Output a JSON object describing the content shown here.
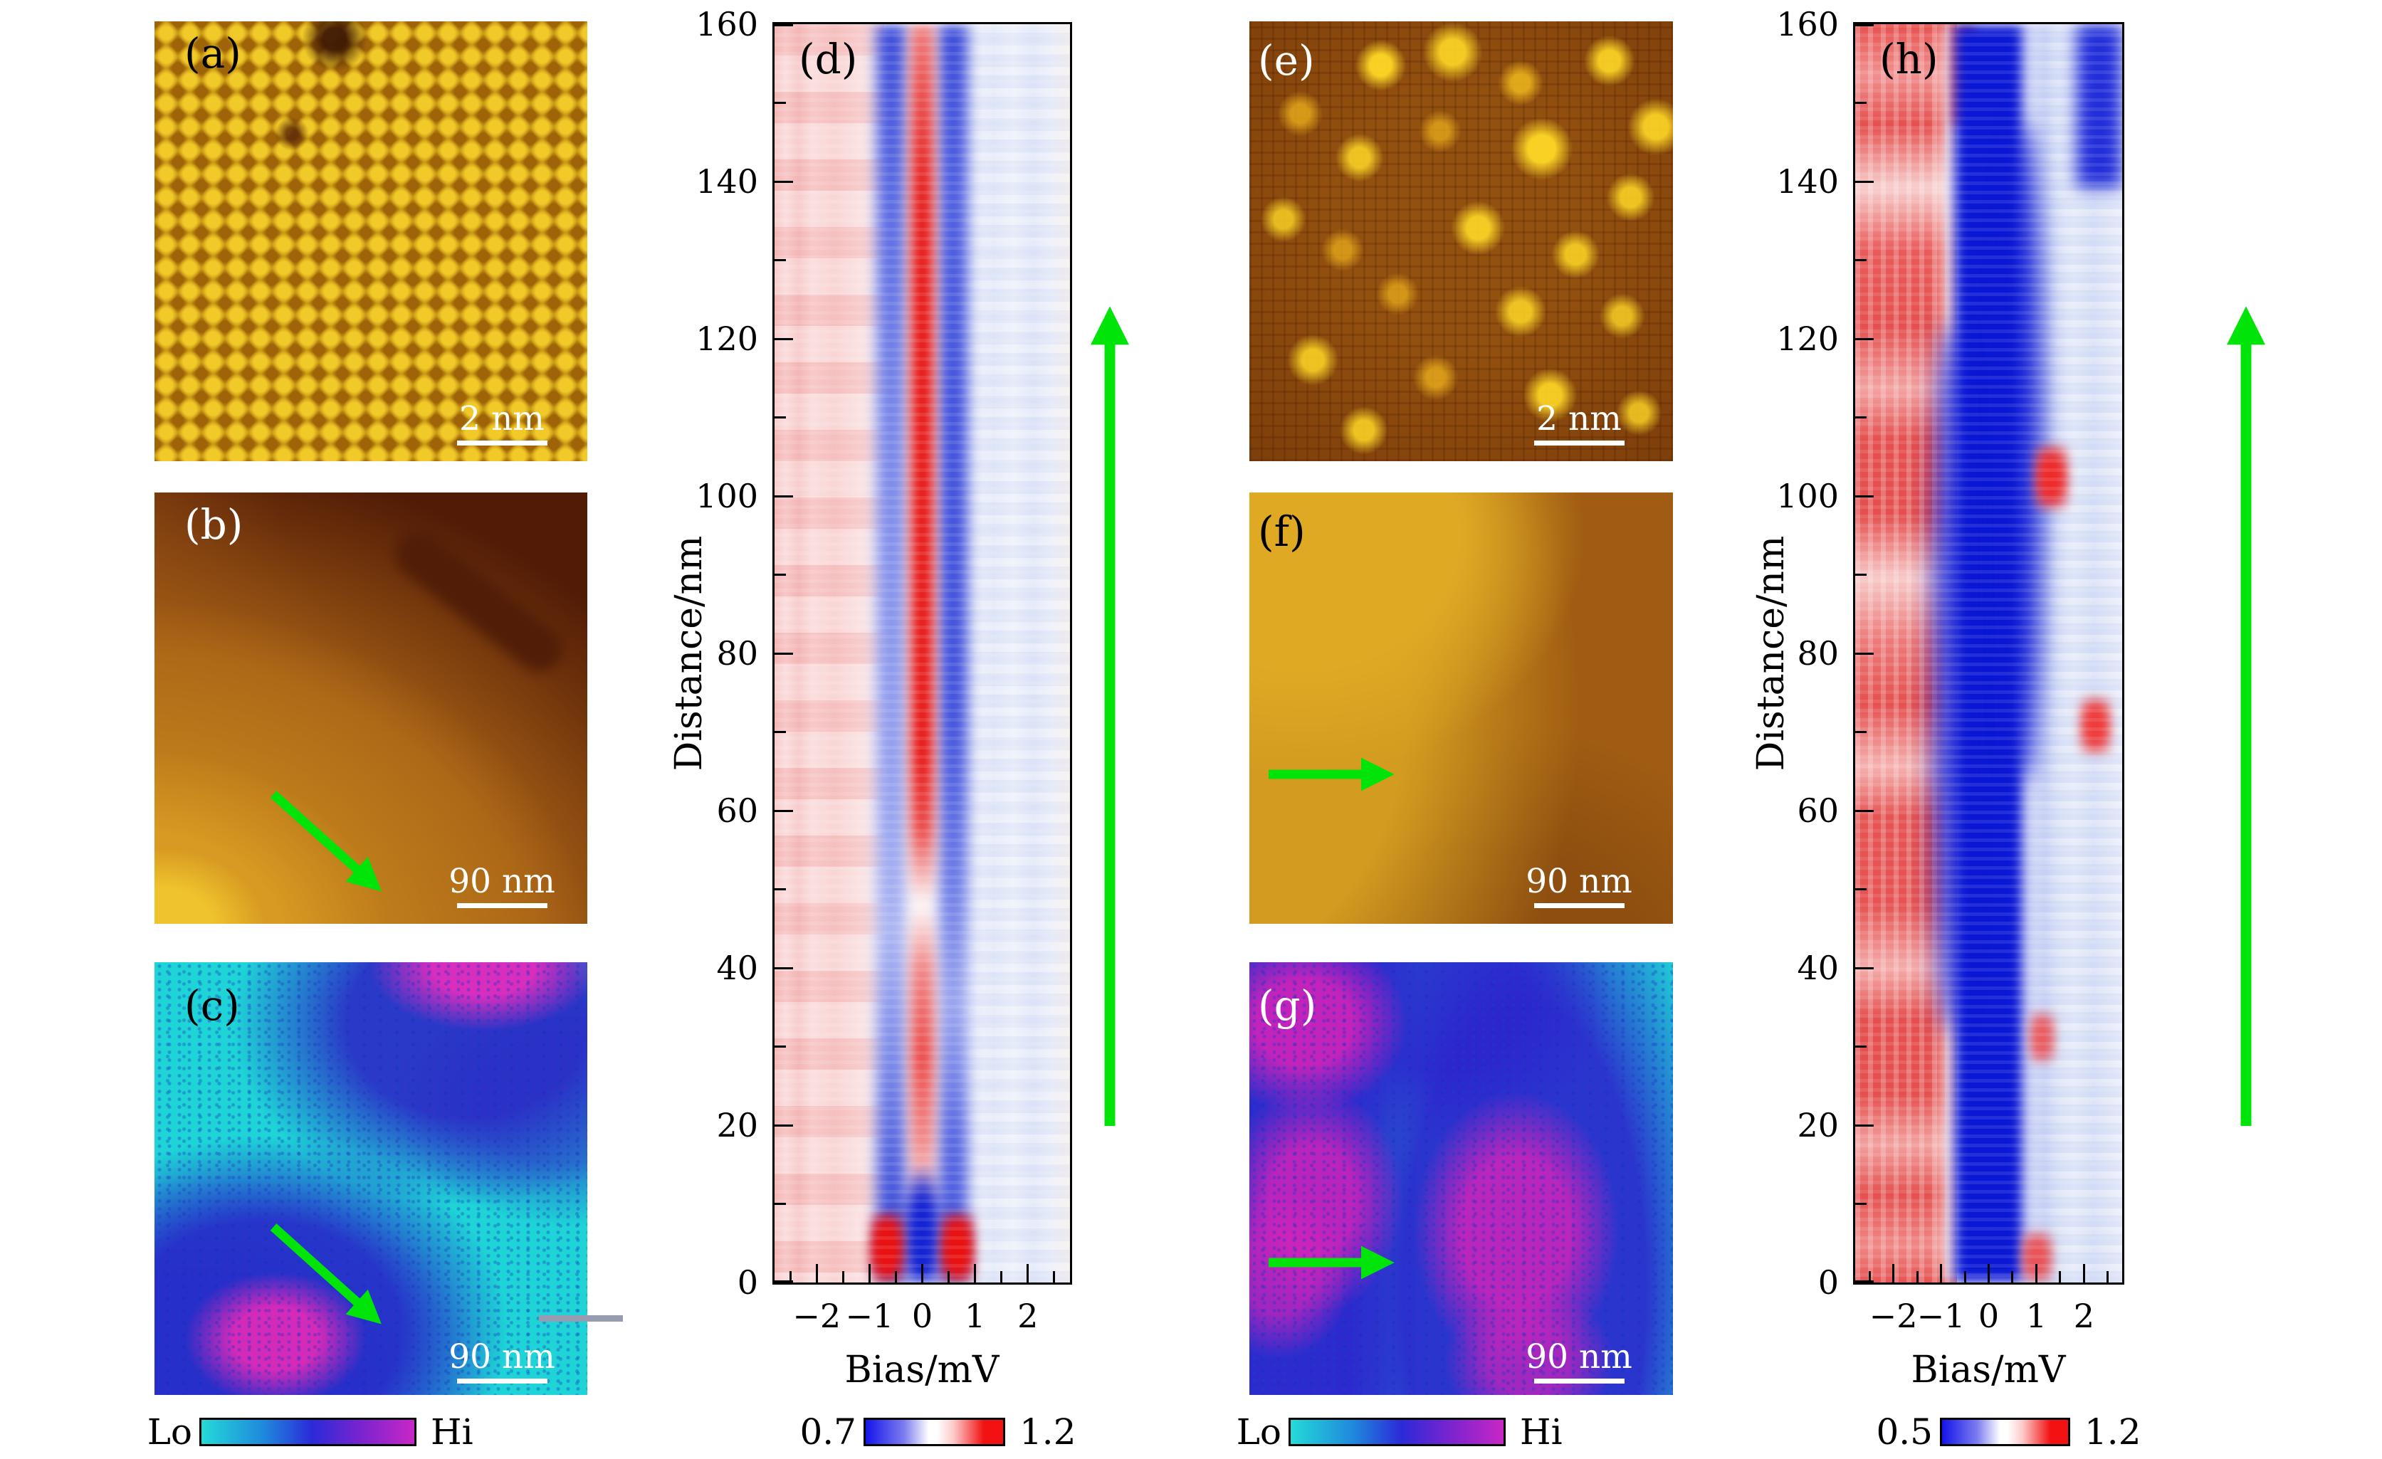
{
  "figure": {
    "panels": {
      "a": {
        "label": "(a)",
        "scalebar": "2 nm",
        "type": "stm-topography-atomic-lattice"
      },
      "b": {
        "label": "(b)",
        "scalebar": "90 nm",
        "type": "stm-topography-terraces"
      },
      "c": {
        "label": "(c)",
        "scalebar": "90 nm",
        "type": "conductance-map"
      },
      "e": {
        "label": "(e)",
        "scalebar": "2 nm",
        "type": "stm-topography-atomic-lattice-with-adsorbates"
      },
      "f": {
        "label": "(f)",
        "scalebar": "90 nm",
        "type": "stm-topography-terraces"
      },
      "g": {
        "label": "(g)",
        "scalebar": "90 nm",
        "type": "conductance-map"
      }
    },
    "heatmaps": {
      "d": {
        "label": "(d)",
        "xlabel": "Bias/mV",
        "ylabel": "Distance/nm"
      },
      "h": {
        "label": "(h)",
        "xlabel": "Bias/mV",
        "ylabel": "Distance/nm"
      }
    },
    "colorbars": {
      "c": {
        "min": "Lo",
        "max": "Hi"
      },
      "d": {
        "min": "0.7",
        "max": "1.2"
      },
      "g": {
        "min": "Lo",
        "max": "Hi"
      },
      "h": {
        "min": "0.5",
        "max": "1.2"
      }
    },
    "colors": {
      "arrow_green": "#00e409",
      "cool_colormap": [
        "#24dad8",
        "#2b2ad8",
        "#c926c6"
      ],
      "diverging_colormap": [
        "#1414ea",
        "#ffffff",
        "#f21212"
      ]
    }
  },
  "chart_data": [
    {
      "panel": "d",
      "type": "heatmap",
      "title": "",
      "xlabel": "Bias/mV",
      "ylabel": "Distance/nm",
      "x_range": [
        -2.8,
        2.8
      ],
      "y_range": [
        0,
        160
      ],
      "x_ticks": [
        -2,
        -1,
        0,
        1,
        2
      ],
      "x_minor_step": 0.5,
      "y_ticks": [
        0,
        20,
        40,
        60,
        80,
        100,
        120,
        140,
        160
      ],
      "y_minor_step": 10,
      "grid": false,
      "colorbar": {
        "min": 0.7,
        "max": 1.2,
        "colormap": "blue-white-red",
        "position": "bottom"
      },
      "annotations": [
        "green arrow alongside the panel marks the spatial direction of the line cut (0 to 160 nm, pointing up)"
      ],
      "features": [
        "pale red plateau (~1.05) for bias below -1 mV at all distances",
        "blue gap shoulders (~0.75) near +/-0.7 mV running the full length",
        "strong red zero-bias peak (~1.2) from ~10 nm to ~155 nm, widest between 45 and 125 nm, pinched near 50 nm",
        "at 0-10 nm the gap is deep blue at 0 mV with red coherence peaks near +/-1 mV",
        "pale blue region (~0.95) for bias above +1 mV"
      ]
    },
    {
      "panel": "h",
      "type": "heatmap",
      "title": "",
      "xlabel": "Bias/mV",
      "ylabel": "Distance/nm",
      "x_range": [
        -2.8,
        2.8
      ],
      "y_range": [
        0,
        160
      ],
      "x_ticks": [
        -2,
        -1,
        0,
        1,
        2
      ],
      "x_minor_step": 0.5,
      "y_ticks": [
        0,
        20,
        40,
        60,
        80,
        100,
        120,
        140,
        160
      ],
      "y_minor_step": 10,
      "grid": false,
      "colorbar": {
        "min": 0.5,
        "max": 1.2,
        "colormap": "blue-white-red",
        "position": "bottom"
      },
      "annotations": [
        "green arrow alongside the panel marks the spatial direction of the line cut (0 to 160 nm, pointing up)"
      ],
      "features": [
        "mottled red region (~1.1) for bias below -1 mV at all distances",
        "deep blue superconducting gap (~0.5) between about -1 and +1 mV along the entire 160 nm, bulging wider near the middle",
        "pale blue region for bias above +1 mV with isolated red spots near 102 nm, 71 nm and 33 nm",
        "deep blue patch near +2.5 mV above ~140 nm",
        "red band near +1.3 mV at the bottom edge"
      ]
    }
  ]
}
